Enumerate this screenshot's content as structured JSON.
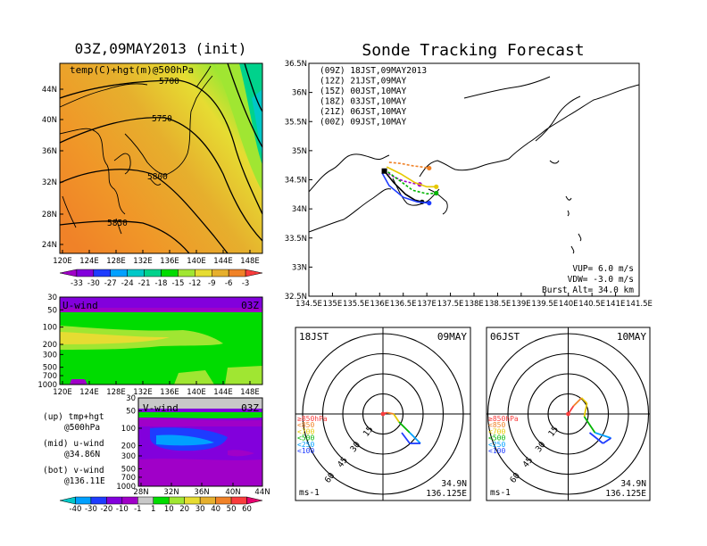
{
  "titles": {
    "left": "03Z,09MAY2013 (init)",
    "right": "Sonde Tracking Forecast"
  },
  "map500": {
    "title": "temp(C)+hgt(m)@500hPa",
    "contour_labels": [
      "5700",
      "5750",
      "5800",
      "5850"
    ],
    "lat_ticks": [
      "44N",
      "40N",
      "36N",
      "32N",
      "28N",
      "24N"
    ],
    "lon_ticks": [
      "120E",
      "124E",
      "128E",
      "132E",
      "136E",
      "140E",
      "144E",
      "148E"
    ]
  },
  "colorbar_temp": {
    "labels": [
      "-33",
      "-30",
      "-27",
      "-24",
      "-21",
      "-18",
      "-15",
      "-12",
      "-9",
      "-6",
      "-3"
    ],
    "colors": [
      "#a000c8",
      "#8200dc",
      "#1e3cff",
      "#00a0ff",
      "#00c8c8",
      "#00d28c",
      "#00dc00",
      "#a0e632",
      "#e6dc32",
      "#e6af2d",
      "#f08228",
      "#fa3c3c"
    ]
  },
  "uwind": {
    "title": "U-wind",
    "time": "03Z",
    "y_ticks": [
      "30",
      "50",
      "100",
      "200",
      "300",
      "500",
      "700",
      "1000"
    ],
    "x_ticks": [
      "120E",
      "124E",
      "128E",
      "132E",
      "136E",
      "140E",
      "144E",
      "148E"
    ]
  },
  "vwind": {
    "title": "V-wind",
    "time": "03Z",
    "y_ticks": [
      "30",
      "50",
      "100",
      "200",
      "300",
      "500",
      "700",
      "1000"
    ],
    "x_ticks": [
      "28N",
      "32N",
      "36N",
      "40N",
      "44N"
    ]
  },
  "legend_left": {
    "line1": "(up) tmp+hgt",
    "line2": "@500hPa",
    "line3": "(mid) u-wind",
    "line4": "@34.86N",
    "line5": "(bot) v-wind",
    "line6": "@136.11E"
  },
  "colorbar_wind": {
    "labels": [
      "-40",
      "-30",
      "-20",
      "-10",
      "-1",
      "1",
      "10",
      "20",
      "30",
      "40",
      "50",
      "60"
    ],
    "colors": [
      "#00c8c8",
      "#00a0ff",
      "#1e3cff",
      "#8200dc",
      "#a000c8",
      "#c8c8c8",
      "#00dc00",
      "#a0e632",
      "#e6dc32",
      "#e6af2d",
      "#f08228",
      "#fa3c3c",
      "#e6006e"
    ]
  },
  "track": {
    "lat_ticks": [
      "36.5N",
      "36N",
      "35.5N",
      "35N",
      "34.5N",
      "34N",
      "33.5N",
      "33N",
      "32.5N"
    ],
    "lon_ticks": [
      "134.5E",
      "135E",
      "135.5E",
      "136E",
      "136.5E",
      "137E",
      "137.5E",
      "138E",
      "138.5E",
      "139E",
      "139.5E",
      "140E",
      "140.5E",
      "141E",
      "141.5E"
    ],
    "legend": [
      {
        "text": "(09Z)  18JST,09MAY2013",
        "color": "#000000"
      },
      {
        "text": "(12Z)  21JST,09MAY",
        "color": "#a000c8"
      },
      {
        "text": "(15Z)  00JST,10MAY",
        "color": "#1e3cff"
      },
      {
        "text": "(18Z)  03JST,10MAY",
        "color": "#00b400"
      },
      {
        "text": "(21Z)  06JST,10MAY",
        "color": "#e6c800"
      },
      {
        "text": "(00Z)  09JST,10MAY",
        "color": "#f08228"
      }
    ],
    "vup": "VUP=  6.0  m/s",
    "vdw": "VDW= -3.0  m/s",
    "burst": "Burst Alt=  34.0  km"
  },
  "hodo_left": {
    "time": "18JST",
    "date": "09MAY",
    "ring_labels": [
      "15",
      "30",
      "45",
      "60"
    ],
    "levels": [
      {
        "text": "≥850hPa",
        "color": "#fa3c3c"
      },
      {
        "text": "<850",
        "color": "#f08228"
      },
      {
        "text": "<700",
        "color": "#e6c800"
      },
      {
        "text": "<500",
        "color": "#00b400"
      },
      {
        "text": "<250",
        "color": "#00a0ff"
      },
      {
        "text": "<100",
        "color": "#1e3cff"
      }
    ],
    "units": "ms-1",
    "lat": "34.9N",
    "lon": "136.125E"
  },
  "hodo_right": {
    "time": "06JST",
    "date": "10MAY",
    "ring_labels": [
      "15",
      "30",
      "45",
      "60"
    ],
    "levels": [
      {
        "text": "≥850hPa",
        "color": "#fa3c3c"
      },
      {
        "text": "<850",
        "color": "#f08228"
      },
      {
        "text": "<700",
        "color": "#e6c800"
      },
      {
        "text": "<500",
        "color": "#00b400"
      },
      {
        "text": "<250",
        "color": "#00a0ff"
      },
      {
        "text": "<100",
        "color": "#1e3cff"
      }
    ],
    "units": "ms-1",
    "lat": "34.9N",
    "lon": "136.125E"
  },
  "chart_data": [
    {
      "type": "heatmap",
      "title": "temp(C)+hgt(m)@500hPa",
      "x_range": [
        120,
        150
      ],
      "y_range": [
        22,
        47
      ],
      "contours": [
        5700,
        5750,
        5800,
        5850
      ]
    },
    {
      "type": "line",
      "title": "Sonde Tracking Forecast",
      "x_range": [
        134.5,
        141.5
      ],
      "y_range": [
        32.5,
        36.5
      ],
      "launch": [
        136.1,
        34.65
      ],
      "series": [
        {
          "name": "(09Z) 18JST,09MAY2013",
          "color": "#000000",
          "x": [
            136.1,
            136.3,
            136.55,
            136.75,
            136.9
          ],
          "y": [
            34.65,
            34.45,
            34.25,
            34.15,
            34.12
          ]
        },
        {
          "name": "(12Z) 21JST,09MAY",
          "color": "#a000c8",
          "x": [
            136.1,
            136.3,
            136.5,
            136.7,
            136.85
          ],
          "y": [
            34.65,
            34.55,
            34.48,
            34.44,
            34.42
          ]
        },
        {
          "name": "(15Z) 00JST,10MAY",
          "color": "#1e3cff",
          "x": [
            136.05,
            136.2,
            136.5,
            136.8,
            137.05
          ],
          "y": [
            34.62,
            34.4,
            34.2,
            34.12,
            34.1
          ]
        },
        {
          "name": "(18Z) 03JST,10MAY",
          "color": "#00b400",
          "x": [
            136.1,
            136.4,
            136.7,
            137.0,
            137.2
          ],
          "y": [
            34.68,
            34.5,
            34.32,
            34.26,
            34.27
          ]
        },
        {
          "name": "(21Z) 06JST,10MAY",
          "color": "#e6c800",
          "x": [
            136.15,
            136.45,
            136.75,
            137.0,
            137.2
          ],
          "y": [
            34.72,
            34.6,
            34.45,
            34.38,
            34.38
          ]
        },
        {
          "name": "(00Z) 09JST,10MAY",
          "color": "#f08228",
          "x": [
            136.2,
            136.45,
            136.7,
            136.9,
            137.05
          ],
          "y": [
            34.8,
            34.78,
            34.74,
            34.72,
            34.7
          ]
        }
      ]
    },
    {
      "type": "line",
      "title": "18JST 09MAY hodograph",
      "max_speed": 60,
      "u": [
        0,
        3,
        8,
        12,
        20,
        28,
        20,
        14
      ],
      "v": [
        0,
        1,
        0,
        -6,
        -14,
        -22,
        -22,
        -14
      ],
      "segment_colors": [
        "#fa3c3c",
        "#f08228",
        "#e6c800",
        "#00b400",
        "#00a0ff",
        "#1e3cff",
        "#1e3cff"
      ]
    },
    {
      "type": "line",
      "title": "06JST 10MAY hodograph",
      "max_speed": 60,
      "u": [
        0,
        4,
        10,
        14,
        12,
        20,
        32,
        26,
        16
      ],
      "v": [
        0,
        6,
        12,
        8,
        -2,
        -14,
        -18,
        -22,
        -14
      ],
      "segment_colors": [
        "#fa3c3c",
        "#f08228",
        "#e6c800",
        "#e6c800",
        "#00b400",
        "#00a0ff",
        "#1e3cff",
        "#1e3cff"
      ]
    }
  ]
}
